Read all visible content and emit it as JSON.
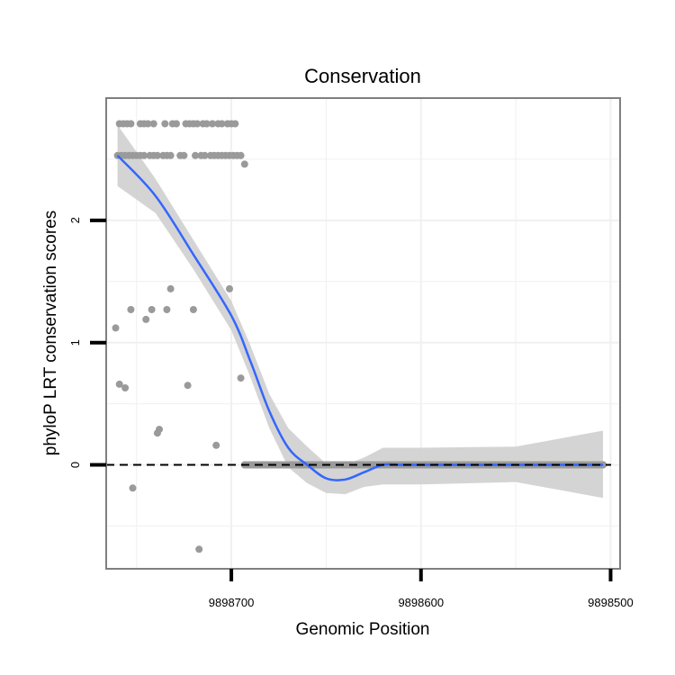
{
  "chart_data": {
    "type": "scatter",
    "title": "Conservation",
    "xlabel": "Genomic Position",
    "ylabel": "phyloP LRT conservation scores",
    "x_reversed": true,
    "xlim": [
      9898766,
      9898495
    ],
    "ylim": [
      -0.85,
      3.0
    ],
    "x_ticks": [
      9898700,
      9898600,
      9898500
    ],
    "x_tick_labels": [
      "9898700",
      "9898600",
      "9898500"
    ],
    "y_ticks": [
      0,
      1,
      2
    ],
    "y_tick_labels": [
      "0",
      "1",
      "2"
    ],
    "reference_line": {
      "y": 0,
      "style": "dashed",
      "color": "#000000"
    },
    "grid": true,
    "colors": {
      "points": "#9a9a9a",
      "smooth_line": "#3366ff",
      "ribbon": "#cfcfcf",
      "panel_border": "#7f7f7f",
      "grid": "#f0f0f0"
    },
    "points": [
      [
        9898759,
        2.79
      ],
      [
        9898757,
        2.79
      ],
      [
        9898755,
        2.79
      ],
      [
        9898753,
        2.79
      ],
      [
        9898748,
        2.79
      ],
      [
        9898746,
        2.79
      ],
      [
        9898744,
        2.79
      ],
      [
        9898741,
        2.79
      ],
      [
        9898735,
        2.79
      ],
      [
        9898731,
        2.79
      ],
      [
        9898729,
        2.79
      ],
      [
        9898724,
        2.79
      ],
      [
        9898722,
        2.79
      ],
      [
        9898720,
        2.79
      ],
      [
        9898718,
        2.79
      ],
      [
        9898715,
        2.79
      ],
      [
        9898713,
        2.79
      ],
      [
        9898710,
        2.79
      ],
      [
        9898707,
        2.79
      ],
      [
        9898705,
        2.79
      ],
      [
        9898702,
        2.79
      ],
      [
        9898700,
        2.79
      ],
      [
        9898698,
        2.79
      ],
      [
        9898760,
        2.53
      ],
      [
        9898758,
        2.53
      ],
      [
        9898756,
        2.53
      ],
      [
        9898754,
        2.53
      ],
      [
        9898752,
        2.53
      ],
      [
        9898750,
        2.53
      ],
      [
        9898748,
        2.53
      ],
      [
        9898746,
        2.53
      ],
      [
        9898743,
        2.53
      ],
      [
        9898741,
        2.53
      ],
      [
        9898739,
        2.53
      ],
      [
        9898736,
        2.53
      ],
      [
        9898734,
        2.53
      ],
      [
        9898732,
        2.53
      ],
      [
        9898727,
        2.53
      ],
      [
        9898725,
        2.53
      ],
      [
        9898719,
        2.53
      ],
      [
        9898716,
        2.53
      ],
      [
        9898714,
        2.53
      ],
      [
        9898711,
        2.53
      ],
      [
        9898709,
        2.53
      ],
      [
        9898707,
        2.53
      ],
      [
        9898705,
        2.53
      ],
      [
        9898703,
        2.53
      ],
      [
        9898701,
        2.53
      ],
      [
        9898699,
        2.53
      ],
      [
        9898697,
        2.53
      ],
      [
        9898695,
        2.53
      ],
      [
        9898693,
        2.46
      ],
      [
        9898761,
        1.12
      ],
      [
        9898759,
        0.66
      ],
      [
        9898756,
        0.63
      ],
      [
        9898753,
        1.27
      ],
      [
        9898752,
        -0.19
      ],
      [
        9898745,
        1.19
      ],
      [
        9898742,
        1.27
      ],
      [
        9898739,
        0.26
      ],
      [
        9898738,
        0.29
      ],
      [
        9898734,
        1.27
      ],
      [
        9898732,
        1.44
      ],
      [
        9898723,
        0.65
      ],
      [
        9898720,
        1.27
      ],
      [
        9898717,
        -0.69
      ],
      [
        9898708,
        0.16
      ],
      [
        9898701,
        1.44
      ],
      [
        9898695,
        0.71
      ],
      [
        9898693,
        0.0
      ],
      [
        9898680,
        0.0
      ],
      [
        9898665,
        0.0
      ],
      [
        9898650,
        0.0
      ],
      [
        9898635,
        0.0
      ],
      [
        9898620,
        0.0
      ],
      [
        9898605,
        0.0
      ],
      [
        9898590,
        0.0
      ],
      [
        9898575,
        0.0
      ],
      [
        9898560,
        0.0
      ],
      [
        9898545,
        0.0
      ],
      [
        9898530,
        0.0
      ],
      [
        9898515,
        0.0
      ],
      [
        9898504,
        0.0
      ]
    ],
    "smooth": {
      "method": "loess",
      "x": [
        9898760,
        9898740,
        9898720,
        9898700,
        9898690,
        9898680,
        9898670,
        9898660,
        9898650,
        9898640,
        9898630,
        9898620,
        9898610,
        9898600,
        9898550,
        9898504
      ],
      "y": [
        2.53,
        2.2,
        1.72,
        1.22,
        0.85,
        0.44,
        0.14,
        0.0,
        -0.11,
        -0.12,
        -0.06,
        0.0,
        0.0,
        0.0,
        0.0,
        0.0
      ],
      "lower": [
        2.28,
        2.06,
        1.6,
        1.1,
        0.72,
        0.3,
        -0.02,
        -0.15,
        -0.23,
        -0.24,
        -0.18,
        -0.16,
        -0.16,
        -0.16,
        -0.14,
        -0.27
      ],
      "upper": [
        2.78,
        2.34,
        1.84,
        1.34,
        0.98,
        0.58,
        0.3,
        0.15,
        0.01,
        0.0,
        0.06,
        0.14,
        0.14,
        0.14,
        0.15,
        0.28
      ]
    },
    "dense_segment": {
      "x_from": 9898693,
      "x_to": 9898504,
      "y": 0
    }
  }
}
